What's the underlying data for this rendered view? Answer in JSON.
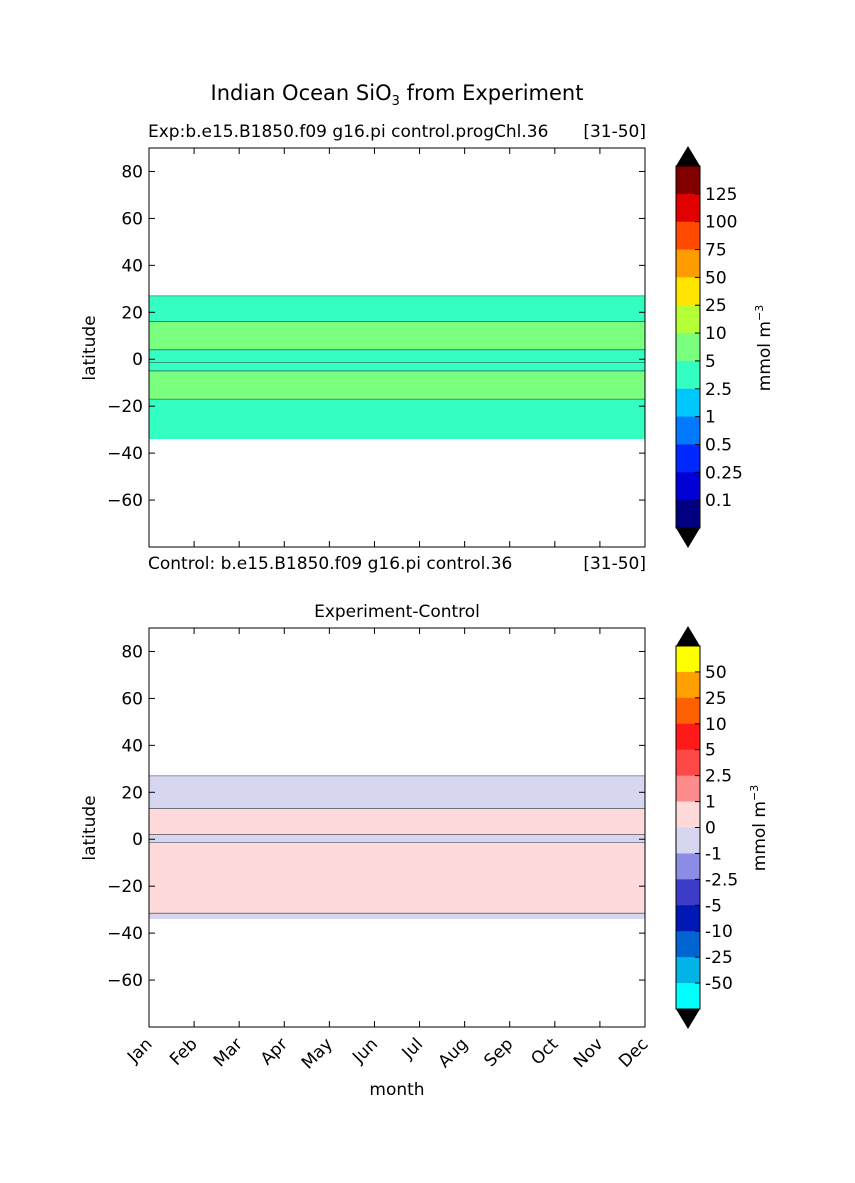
{
  "title_prefix": "Indian Ocean SiO",
  "title_sub": "3",
  "title_suffix": " from Experiment",
  "chart_data": [
    {
      "type": "contour",
      "panel": "experiment",
      "title_left": "Exp:b.e15.B1850.f09 g16.pi control.progChl.36",
      "title_right": "[31-50]",
      "bottom_left": "Control: b.e15.B1850.f09 g16.pi control.36",
      "bottom_right": "[31-50]",
      "ylabel": "latitude",
      "ylim": [
        -80,
        90
      ],
      "yticks": [
        "80",
        "60",
        "40",
        "20",
        "0",
        "−20",
        "−40",
        "−60"
      ],
      "ytick_values": [
        80,
        60,
        40,
        20,
        0,
        -20,
        -40,
        -60
      ],
      "months": [
        "Jan",
        "Feb",
        "Mar",
        "Apr",
        "May",
        "Jun",
        "Jul",
        "Aug",
        "Sep",
        "Oct",
        "Nov",
        "Dec"
      ],
      "data_lat_range": [
        -34,
        27
      ],
      "bands": [
        {
          "from": 16,
          "to": 27,
          "level": "2.5-5"
        },
        {
          "from": 4,
          "to": 16,
          "level": "5-10"
        },
        {
          "from": -1.5,
          "to": 4,
          "level": "2.5-5"
        },
        {
          "from": -5,
          "to": -1.5,
          "level": "2.5-5"
        },
        {
          "from": -17,
          "to": -5,
          "level": "5-10"
        },
        {
          "from": -34,
          "to": -17,
          "level": "2.5-5"
        }
      ],
      "colorbar": {
        "unit": "mmol m",
        "unit_exp": "−3",
        "labels": [
          "125",
          "100",
          "75",
          "50",
          "25",
          "10",
          "5",
          "2.5",
          "1",
          "0.5",
          "0.25",
          "0.1"
        ],
        "colors": [
          "#800000",
          "#e00000",
          "#ff4a00",
          "#ff9c00",
          "#ffe400",
          "#b4ff36",
          "#7aff7e",
          "#33ffc2",
          "#00c8ff",
          "#0078ff",
          "#0028ff",
          "#0000d6",
          "#000080"
        ]
      }
    },
    {
      "type": "contour",
      "panel": "difference",
      "title": "Experiment-Control",
      "ylabel": "latitude",
      "xlabel": "month",
      "ylim": [
        -80,
        90
      ],
      "yticks": [
        "80",
        "60",
        "40",
        "20",
        "0",
        "−20",
        "−40",
        "−60"
      ],
      "ytick_values": [
        80,
        60,
        40,
        20,
        0,
        -20,
        -40,
        -60
      ],
      "months": [
        "Jan",
        "Feb",
        "Mar",
        "Apr",
        "May",
        "Jun",
        "Jul",
        "Aug",
        "Sep",
        "Oct",
        "Nov",
        "Dec"
      ],
      "data_lat_range": [
        -34,
        27
      ],
      "bands": [
        {
          "from": 13,
          "to": 27,
          "level": "-1-0"
        },
        {
          "from": 2,
          "to": 13,
          "level": "0-1"
        },
        {
          "from": -1.5,
          "to": 2,
          "level": "-1-0"
        },
        {
          "from": -31.5,
          "to": -1.5,
          "level": "0-1"
        },
        {
          "from": -34,
          "to": -31.5,
          "level": "-1-0"
        }
      ],
      "colorbar": {
        "unit": "mmol m",
        "unit_exp": "−3",
        "labels": [
          "50",
          "25",
          "10",
          "5",
          "2.5",
          "1",
          "0",
          "-1",
          "-2.5",
          "-5",
          "-10",
          "-25",
          "-50"
        ],
        "colors": [
          "#ffff00",
          "#ffa000",
          "#ff6000",
          "#ff1a1a",
          "#ff4848",
          "#ff8c8c",
          "#ffdada",
          "#d6d6f0",
          "#8c8ce6",
          "#3c3cc8",
          "#0018b4",
          "#0064d2",
          "#00b4e6",
          "#00ffff"
        ]
      }
    }
  ]
}
